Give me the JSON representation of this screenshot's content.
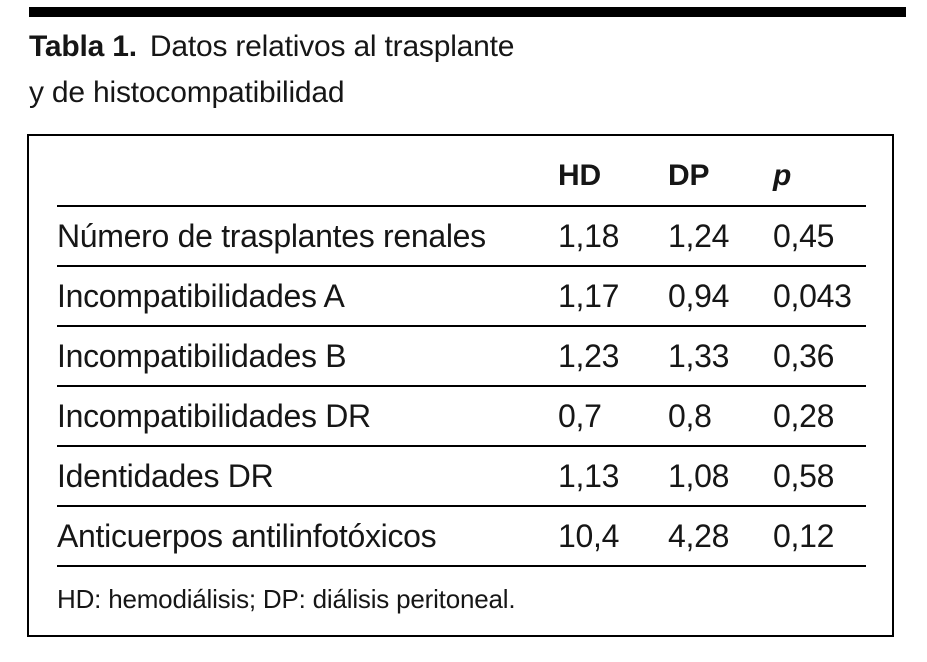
{
  "colors": {
    "background": "#ffffff",
    "text": "#161616",
    "rule": "#000000",
    "border": "#000000"
  },
  "caption": {
    "label": "Tabla 1.",
    "rest": "Datos relativos al trasplante",
    "line2": "y de histocompatibilidad"
  },
  "table": {
    "columns": [
      "HD",
      "DP",
      "p"
    ],
    "rows": [
      {
        "label": "Número de trasplantes renales",
        "hd": "1,18",
        "dp": "1,24",
        "p": "0,45"
      },
      {
        "label": "Incompatibilidades A",
        "hd": "1,17",
        "dp": "0,94",
        "p": "0,043"
      },
      {
        "label": "Incompatibilidades B",
        "hd": "1,23",
        "dp": "1,33",
        "p": "0,36"
      },
      {
        "label": "Incompatibilidades DR",
        "hd": "0,7",
        "dp": "0,8",
        "p": "0,28"
      },
      {
        "label": "Identidades DR",
        "hd": "1,13",
        "dp": "1,08",
        "p": "0,58"
      },
      {
        "label": "Anticuerpos antilinfotóxicos",
        "hd": "10,4",
        "dp": "4,28",
        "p": "0,12"
      }
    ],
    "footnote": "HD: hemodiálisis; DP: diálisis peritoneal."
  }
}
